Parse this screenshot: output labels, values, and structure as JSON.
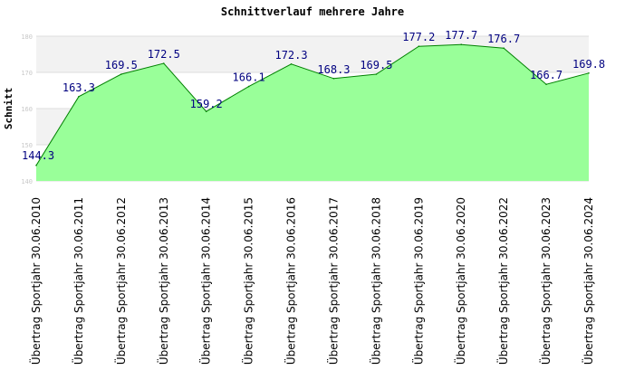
{
  "colors": {
    "area": "#99ff99",
    "line": "#008000",
    "band": "#f2f2f2",
    "grid": "#dddddd",
    "label": "#000080"
  },
  "chart_data": {
    "type": "area",
    "title": "Schnittverlauf mehrere Jahre",
    "xlabel": "",
    "ylabel": "Schnitt",
    "ylim": [
      140,
      180
    ],
    "yticks": [
      140,
      150,
      160,
      170,
      180
    ],
    "grid": true,
    "categories": [
      "Übertrag Sportjahr 30.06.2010",
      "Übertrag Sportjahr 30.06.2011",
      "Übertrag Sportjahr 30.06.2012",
      "Übertrag Sportjahr 30.06.2013",
      "Übertrag Sportjahr 30.06.2014",
      "Übertrag Sportjahr 30.06.2015",
      "Übertrag Sportjahr 30.06.2016",
      "Übertrag Sportjahr 30.06.2017",
      "Übertrag Sportjahr 30.06.2018",
      "Übertrag Sportjahr 30.06.2019",
      "Übertrag Sportjahr 30.06.2020",
      "Übertrag Sportjahr 30.06.2022",
      "Übertrag Sportjahr 30.06.2023",
      "Übertrag Sportjahr 30.06.2024"
    ],
    "values": [
      144.3,
      163.3,
      169.5,
      172.5,
      159.2,
      166.1,
      172.3,
      168.3,
      169.5,
      177.2,
      177.7,
      176.7,
      166.7,
      169.8
    ],
    "data_labels": [
      "144.3",
      "163.3",
      "169.5",
      "172.5",
      "159.2",
      "166.1",
      "172.3",
      "168.3",
      "169.5",
      "177.2",
      "177.7",
      "176.7",
      "166.7",
      "169.8"
    ]
  }
}
